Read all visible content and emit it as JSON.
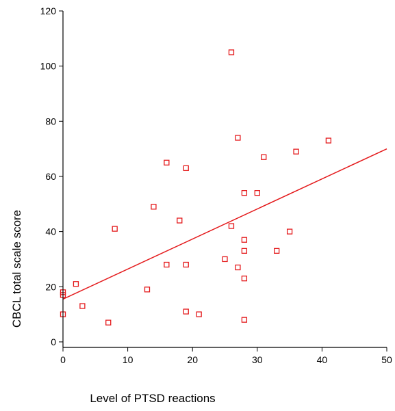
{
  "chart_data": {
    "type": "scatter",
    "xlabel": "Level of PTSD reactions",
    "ylabel": "CBCL total scale score",
    "xlim": [
      0,
      50
    ],
    "ylim": [
      -2,
      120
    ],
    "x_ticks": [
      0,
      10,
      20,
      30,
      40,
      50
    ],
    "y_ticks": [
      0,
      20,
      40,
      60,
      80,
      100,
      120
    ],
    "grid": false,
    "legend": "none",
    "marker": "open-square",
    "series": [
      {
        "points": [
          {
            "x": 0,
            "y": 17
          },
          {
            "x": 0,
            "y": 18
          },
          {
            "x": 0,
            "y": 10
          },
          {
            "x": 2,
            "y": 21
          },
          {
            "x": 3,
            "y": 13
          },
          {
            "x": 7,
            "y": 7
          },
          {
            "x": 8,
            "y": 41
          },
          {
            "x": 13,
            "y": 19
          },
          {
            "x": 14,
            "y": 49
          },
          {
            "x": 16,
            "y": 65
          },
          {
            "x": 16,
            "y": 28
          },
          {
            "x": 18,
            "y": 44
          },
          {
            "x": 19,
            "y": 63
          },
          {
            "x": 19,
            "y": 28
          },
          {
            "x": 19,
            "y": 11
          },
          {
            "x": 21,
            "y": 10
          },
          {
            "x": 25,
            "y": 30
          },
          {
            "x": 26,
            "y": 105
          },
          {
            "x": 26,
            "y": 42
          },
          {
            "x": 27,
            "y": 74
          },
          {
            "x": 27,
            "y": 27
          },
          {
            "x": 28,
            "y": 54
          },
          {
            "x": 28,
            "y": 37
          },
          {
            "x": 28,
            "y": 33
          },
          {
            "x": 28,
            "y": 23
          },
          {
            "x": 28,
            "y": 8
          },
          {
            "x": 30,
            "y": 54
          },
          {
            "x": 31,
            "y": 67
          },
          {
            "x": 33,
            "y": 33
          },
          {
            "x": 35,
            "y": 40
          },
          {
            "x": 36,
            "y": 69
          },
          {
            "x": 41,
            "y": 73
          }
        ]
      }
    ],
    "fit_line": {
      "x": [
        0,
        50
      ],
      "y": [
        15.5,
        70
      ]
    },
    "colors": {
      "marker": "#e41a1c",
      "line": "#e41a1c",
      "axis": "#000000"
    }
  }
}
